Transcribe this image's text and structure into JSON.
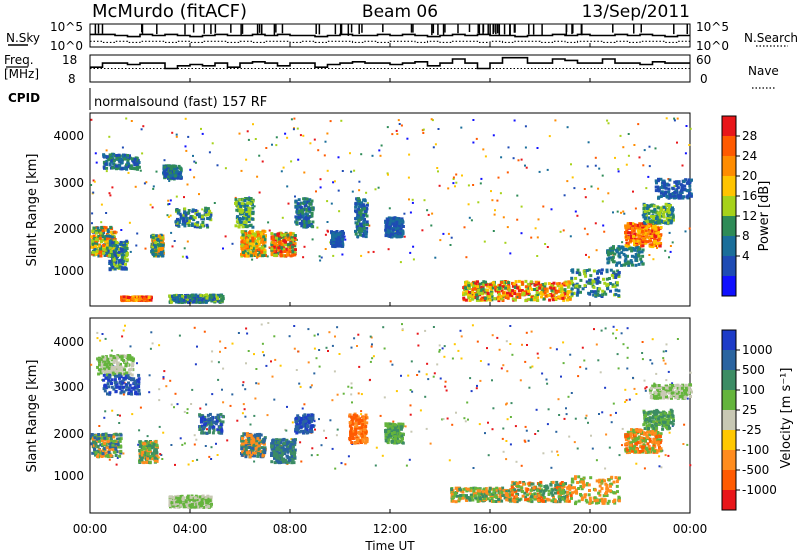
{
  "header": {
    "station": "McMurdo (fitACF)",
    "beam": "Beam 06",
    "date": "13/Sep/2011"
  },
  "left_labels": {
    "nsky": "N.Sky",
    "freq_line1": "Freq.",
    "freq_line2": "[MHz]",
    "cpid": "CPID"
  },
  "right_labels": {
    "nsearch": "N.Search",
    "nave": "Nave"
  },
  "cpid_text": "normalsound (fast) 157 RF",
  "chart_data": [
    {
      "type": "line",
      "panel": "noise",
      "left_ticks": [
        "10^5",
        "10^0"
      ],
      "right_ticks": [
        "10^5",
        "10^0"
      ],
      "series": [
        {
          "name": "N.Sky",
          "style": "solid",
          "values": [
            0.55,
            0.55,
            0.5,
            0.45,
            0.55,
            0.5,
            0.55,
            0.5,
            0.45,
            0.5,
            0.55,
            0.5,
            0.5,
            0.55,
            0.5,
            0.55,
            0.5,
            0.5,
            0.45,
            0.5,
            0.55,
            0.5,
            0.5,
            0.55,
            0.5,
            0.55,
            0.5,
            0.45,
            0.5,
            0.55,
            0.5,
            0.55,
            0.5,
            0.5,
            0.45,
            0.5,
            0.5,
            0.55,
            0.5,
            0.55,
            0.5,
            0.5,
            0.55,
            0.5,
            0.55,
            0.5,
            0.45,
            0.5
          ]
        },
        {
          "name": "N.Search",
          "style": "dotted",
          "values": [
            0.25,
            0.2,
            0.25,
            0.2,
            0.25,
            0.25,
            0.2,
            0.25,
            0.2,
            0.25,
            0.25,
            0.2,
            0.25,
            0.2,
            0.25,
            0.25,
            0.2,
            0.25,
            0.2,
            0.25,
            0.25,
            0.2,
            0.25,
            0.2,
            0.25,
            0.25,
            0.2,
            0.25,
            0.2,
            0.25,
            0.25,
            0.2,
            0.25,
            0.2,
            0.25,
            0.25,
            0.2,
            0.25,
            0.2,
            0.25,
            0.25,
            0.2,
            0.25,
            0.2,
            0.25,
            0.25,
            0.2,
            0.25
          ]
        }
      ]
    },
    {
      "type": "line",
      "panel": "frequency",
      "left_ticks": [
        "18",
        "8"
      ],
      "right_ticks": [
        "60",
        "0"
      ],
      "series": [
        {
          "name": "Freq",
          "style": "solid",
          "values": [
            0.55,
            0.7,
            0.7,
            0.65,
            0.7,
            0.7,
            0.5,
            0.6,
            0.65,
            0.6,
            0.7,
            0.55,
            0.7,
            0.75,
            0.7,
            0.6,
            0.7,
            0.7,
            0.55,
            0.65,
            0.7,
            0.75,
            0.7,
            0.7,
            0.65,
            0.7,
            0.75,
            0.6,
            0.7,
            0.85,
            0.7,
            0.5,
            0.7,
            0.9,
            0.9,
            0.7,
            0.7,
            0.85,
            0.8,
            0.7,
            0.7,
            0.85,
            0.7,
            0.7,
            0.65,
            0.75,
            0.7,
            0.7
          ]
        },
        {
          "name": "Nave",
          "style": "dotted",
          "values": [
            0.5,
            0.5,
            0.5,
            0.5,
            0.5,
            0.5,
            0.5,
            0.5,
            0.5,
            0.5,
            0.5,
            0.5,
            0.5,
            0.5,
            0.5,
            0.5,
            0.5,
            0.5,
            0.5,
            0.5,
            0.5,
            0.5,
            0.5,
            0.5,
            0.5,
            0.5,
            0.5,
            0.5,
            0.5,
            0.5,
            0.5,
            0.5,
            0.5,
            0.5,
            0.5,
            0.5,
            0.5,
            0.5,
            0.5,
            0.5,
            0.5,
            0.5,
            0.5,
            0.5,
            0.5,
            0.5,
            0.5,
            0.5
          ]
        }
      ]
    },
    {
      "type": "heatmap",
      "panel": "power",
      "ylabel": "Slant Range [km]",
      "y_ticks": [
        "4000",
        "3000",
        "2000",
        "1000"
      ],
      "colorbar_label": "Power [dB]",
      "colorbar_ticks": [
        "28",
        "24",
        "20",
        "16",
        "12",
        "8",
        "4"
      ],
      "colorbar_colors": [
        "#e8161a",
        "#ff5a00",
        "#ff8c00",
        "#ffc400",
        "#a6d21a",
        "#2e8b57",
        "#1a6e9a",
        "#1e4bb4",
        "#1010ff"
      ]
    },
    {
      "type": "heatmap",
      "panel": "velocity",
      "ylabel": "Slant Range [km]",
      "y_ticks": [
        "4000",
        "3000",
        "2000",
        "1000"
      ],
      "colorbar_label": "Velocity [m s⁻¹]",
      "colorbar_ticks": [
        "1000",
        "500",
        "100",
        "25",
        "-25",
        "-100",
        "-500",
        "-1000"
      ],
      "colorbar_colors": [
        "#1e3cc8",
        "#2a64a0",
        "#3c8c64",
        "#64b43c",
        "#c8c8b4",
        "#ffc800",
        "#ff8c1e",
        "#ff5a00",
        "#e8161a"
      ]
    }
  ],
  "x_axis": {
    "ticks": [
      "00:00",
      "04:00",
      "08:00",
      "12:00",
      "16:00",
      "20:00",
      "00:00"
    ],
    "label": "Time UT"
  }
}
